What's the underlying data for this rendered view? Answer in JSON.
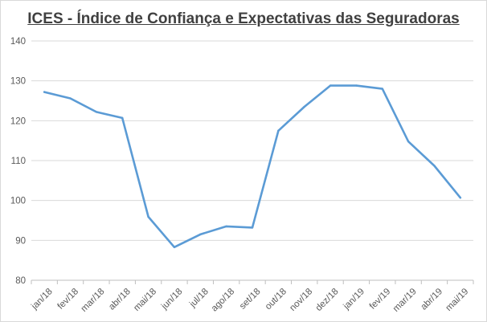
{
  "chart_data": {
    "type": "line",
    "title": "ICES - Índice de Confiança e Expectativas das Seguradoras",
    "xlabel": "",
    "ylabel": "",
    "ylim": [
      80,
      140
    ],
    "yticks": [
      "80",
      "90",
      "100",
      "110",
      "120",
      "130",
      "140"
    ],
    "grid": true,
    "legend": "none",
    "categories": [
      "jan/18",
      "fev/18",
      "mar/18",
      "abr/18",
      "mai/18",
      "jun/18",
      "jul/18",
      "ago/18",
      "set/18",
      "out/18",
      "nov/18",
      "dez/18",
      "jan/19",
      "fev/19",
      "mar/19",
      "abr/19",
      "mai/19"
    ],
    "series": [
      {
        "color": "#5b9bd5",
        "values": [
          127.2,
          125.6,
          122.2,
          120.7,
          95.9,
          88.3,
          91.5,
          93.5,
          93.2,
          117.5,
          123.5,
          128.8,
          128.8,
          128.0,
          114.8,
          108.7,
          100.7
        ]
      }
    ],
    "colors": {
      "grid": "#d9d9d9",
      "text": "#595959",
      "title": "#404040"
    }
  }
}
